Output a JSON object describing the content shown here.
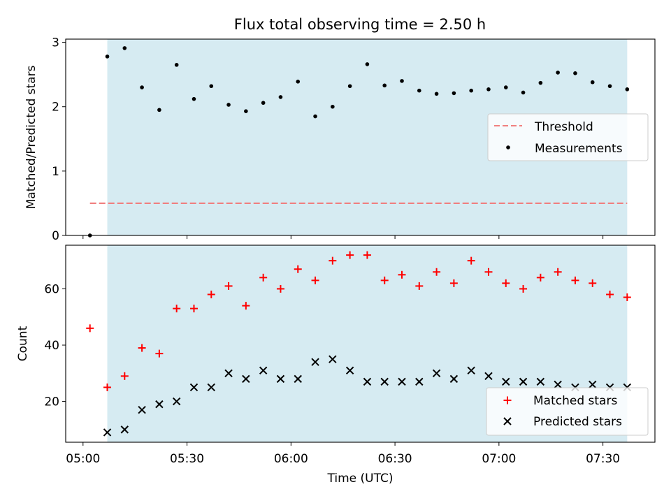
{
  "title": "Flux total observing time = 2.50 h",
  "xlabel": "Time (UTC)",
  "colors": {
    "shade": "#add8e6",
    "threshold": "#f08080",
    "measurement": "#000000",
    "matched": "#ff0000",
    "predicted": "#000000"
  },
  "chart_data": [
    {
      "type": "scatter",
      "panel": "top",
      "title": "Flux total observing time = 2.50 h",
      "xlabel": "",
      "ylabel": "Matched/Predicted stars",
      "xlim": [
        "04:55",
        "07:45"
      ],
      "ylim": [
        0,
        3.05
      ],
      "yticks": [
        0,
        1,
        2,
        3
      ],
      "xticks": [
        "05:00",
        "05:30",
        "06:00",
        "06:30",
        "07:00",
        "07:30"
      ],
      "shaded_interval": [
        "05:07",
        "07:37"
      ],
      "threshold": {
        "name": "Threshold",
        "y": 0.5,
        "x_range": [
          "05:02",
          "07:37"
        ],
        "style": "dashed"
      },
      "legend_position": "center-right",
      "series": [
        {
          "name": "Measurements",
          "marker": "dot",
          "x": [
            "05:02",
            "05:07",
            "05:12",
            "05:17",
            "05:22",
            "05:27",
            "05:32",
            "05:37",
            "05:42",
            "05:47",
            "05:52",
            "05:57",
            "06:02",
            "06:07",
            "06:12",
            "06:17",
            "06:22",
            "06:27",
            "06:32",
            "06:37",
            "06:42",
            "06:47",
            "06:52",
            "06:57",
            "07:02",
            "07:07",
            "07:12",
            "07:17",
            "07:22",
            "07:27",
            "07:32",
            "07:37"
          ],
          "values": [
            0.0,
            2.78,
            2.91,
            2.3,
            1.95,
            2.65,
            2.12,
            2.32,
            2.03,
            1.93,
            2.06,
            2.15,
            2.39,
            1.85,
            2.0,
            2.32,
            2.66,
            2.33,
            2.4,
            2.25,
            2.2,
            2.21,
            2.25,
            2.27,
            2.3,
            2.22,
            2.37,
            2.53,
            2.52,
            2.38,
            2.32,
            2.27
          ]
        }
      ]
    },
    {
      "type": "scatter",
      "panel": "bottom",
      "xlabel": "Time (UTC)",
      "ylabel": "Count",
      "xlim": [
        "04:55",
        "07:45"
      ],
      "ylim": [
        5.5,
        75.5
      ],
      "yticks": [
        20,
        40,
        60
      ],
      "xticks": [
        "05:00",
        "05:30",
        "06:00",
        "06:30",
        "07:00",
        "07:30"
      ],
      "shaded_interval": [
        "05:07",
        "07:37"
      ],
      "legend_position": "lower-right",
      "series": [
        {
          "name": "Matched stars",
          "marker": "plus",
          "x": [
            "05:02",
            "05:07",
            "05:12",
            "05:17",
            "05:22",
            "05:27",
            "05:32",
            "05:37",
            "05:42",
            "05:47",
            "05:52",
            "05:57",
            "06:02",
            "06:07",
            "06:12",
            "06:17",
            "06:22",
            "06:27",
            "06:32",
            "06:37",
            "06:42",
            "06:47",
            "06:52",
            "06:57",
            "07:02",
            "07:07",
            "07:12",
            "07:17",
            "07:22",
            "07:27",
            "07:32",
            "07:37"
          ],
          "values": [
            46,
            25,
            29,
            39,
            37,
            53,
            53,
            58,
            61,
            54,
            64,
            60,
            67,
            63,
            70,
            72,
            72,
            63,
            65,
            61,
            66,
            62,
            70,
            66,
            62,
            60,
            64,
            66,
            63,
            62,
            58,
            57
          ]
        },
        {
          "name": "Predicted stars",
          "marker": "cross",
          "x": [
            "05:07",
            "05:12",
            "05:17",
            "05:22",
            "05:27",
            "05:32",
            "05:37",
            "05:42",
            "05:47",
            "05:52",
            "05:57",
            "06:02",
            "06:07",
            "06:12",
            "06:17",
            "06:22",
            "06:27",
            "06:32",
            "06:37",
            "06:42",
            "06:47",
            "06:52",
            "06:57",
            "07:02",
            "07:07",
            "07:12",
            "07:17",
            "07:22",
            "07:27",
            "07:32",
            "07:37"
          ],
          "values": [
            9,
            10,
            17,
            19,
            20,
            25,
            25,
            30,
            28,
            31,
            28,
            28,
            34,
            35,
            31,
            27,
            27,
            27,
            27,
            30,
            28,
            31,
            29,
            27,
            27,
            27,
            26,
            25,
            26,
            25,
            25
          ]
        }
      ]
    }
  ]
}
